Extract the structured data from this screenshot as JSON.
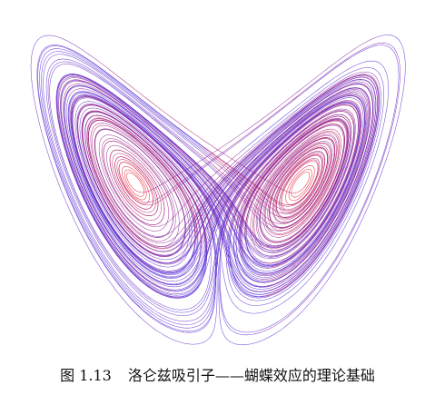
{
  "figure": {
    "caption_number": "图 1.13",
    "caption_title": "洛仑兹吸引子——蝴蝶效应的理论基础"
  },
  "colors": {
    "inner_core": "#e8112a",
    "outer_trajectory": "#5a2fd6",
    "background": "#ffffff"
  }
}
